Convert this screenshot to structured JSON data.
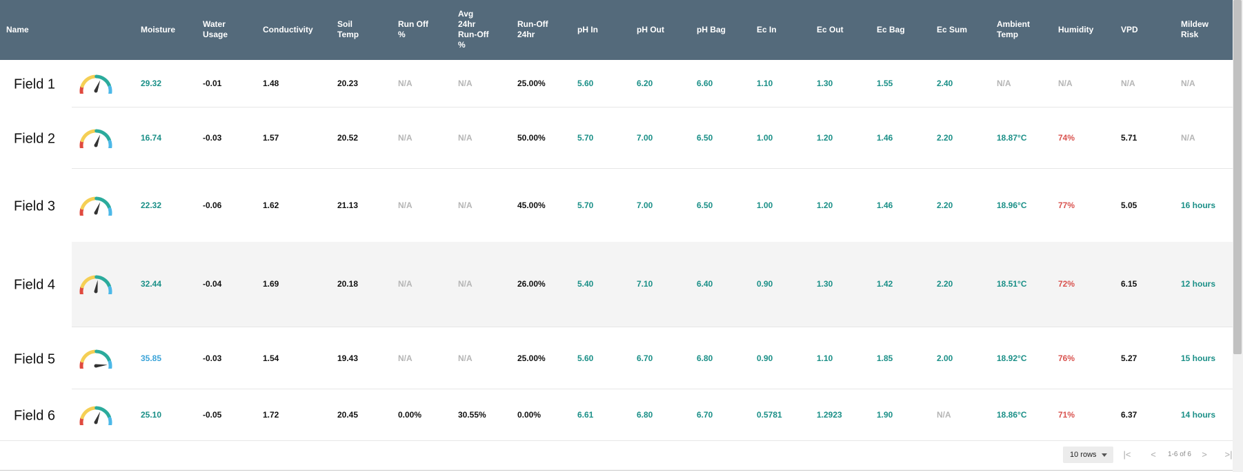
{
  "headers": {
    "name": "Name",
    "moisture": "Moisture",
    "water_usage": "Water\nUsage",
    "conductivity": "Conductivity",
    "soil_temp": "Soil\nTemp",
    "run_off_pct": "Run Off\n%",
    "avg_runoff": "Avg\n24hr\nRun-Off\n%",
    "runoff_24": "Run-Off\n24hr",
    "ph_in": "pH In",
    "ph_out": "pH Out",
    "ph_bag": "pH Bag",
    "ec_in": "Ec In",
    "ec_out": "Ec Out",
    "ec_bag": "Ec Bag",
    "ec_sum": "Ec Sum",
    "ambient_temp": "Ambient\nTemp",
    "humidity": "Humidity",
    "vpd": "VPD",
    "mildew_risk": "Mildew\nRisk"
  },
  "colors": {
    "header_bg": "#546a7b",
    "teal": "#1a8f87",
    "blue": "#3aa3d8",
    "red": "#d9534f",
    "gray": "#b5b5b5",
    "gauge_red": "#e04a3f",
    "gauge_yellow": "#f5cf55",
    "gauge_teal": "#2bab9c",
    "gauge_blue": "#4cb8e8"
  },
  "rows": [
    {
      "name": "Field 1",
      "gauge_level": 0.62,
      "moisture": {
        "v": "29.32",
        "c": "teal"
      },
      "water_usage": {
        "v": "-0.01",
        "c": "dark"
      },
      "conductivity": {
        "v": "1.48",
        "c": "dark"
      },
      "soil_temp": {
        "v": "20.23",
        "c": "dark"
      },
      "run_off_pct": {
        "v": "N/A",
        "c": "gray"
      },
      "avg_runoff": {
        "v": "N/A",
        "c": "gray"
      },
      "runoff_24": {
        "v": "25.00%",
        "c": "dark"
      },
      "ph_in": {
        "v": "5.60",
        "c": "teal"
      },
      "ph_out": {
        "v": "6.20",
        "c": "teal"
      },
      "ph_bag": {
        "v": "6.60",
        "c": "teal"
      },
      "ec_in": {
        "v": "1.10",
        "c": "teal"
      },
      "ec_out": {
        "v": "1.30",
        "c": "teal"
      },
      "ec_bag": {
        "v": "1.55",
        "c": "teal"
      },
      "ec_sum": {
        "v": "2.40",
        "c": "teal"
      },
      "ambient_temp": {
        "v": "N/A",
        "c": "gray"
      },
      "humidity": {
        "v": "N/A",
        "c": "gray"
      },
      "vpd": {
        "v": "N/A",
        "c": "gray"
      },
      "mildew_risk": {
        "v": "N/A",
        "c": "gray"
      }
    },
    {
      "name": "Field 2",
      "gauge_level": 0.62,
      "moisture": {
        "v": "16.74",
        "c": "teal"
      },
      "water_usage": {
        "v": "-0.03",
        "c": "dark"
      },
      "conductivity": {
        "v": "1.57",
        "c": "dark"
      },
      "soil_temp": {
        "v": "20.52",
        "c": "dark"
      },
      "run_off_pct": {
        "v": "N/A",
        "c": "gray"
      },
      "avg_runoff": {
        "v": "N/A",
        "c": "gray"
      },
      "runoff_24": {
        "v": "50.00%",
        "c": "dark"
      },
      "ph_in": {
        "v": "5.70",
        "c": "teal"
      },
      "ph_out": {
        "v": "7.00",
        "c": "teal"
      },
      "ph_bag": {
        "v": "6.50",
        "c": "teal"
      },
      "ec_in": {
        "v": "1.00",
        "c": "teal"
      },
      "ec_out": {
        "v": "1.20",
        "c": "teal"
      },
      "ec_bag": {
        "v": "1.46",
        "c": "teal"
      },
      "ec_sum": {
        "v": "2.20",
        "c": "teal"
      },
      "ambient_temp": {
        "v": "18.87°C",
        "c": "teal"
      },
      "humidity": {
        "v": "74%",
        "c": "red"
      },
      "vpd": {
        "v": "5.71",
        "c": "dark"
      },
      "mildew_risk": {
        "v": "N/A",
        "c": "gray"
      }
    },
    {
      "name": "Field 3",
      "gauge_level": 0.62,
      "moisture": {
        "v": "22.32",
        "c": "teal"
      },
      "water_usage": {
        "v": "-0.06",
        "c": "dark"
      },
      "conductivity": {
        "v": "1.62",
        "c": "dark"
      },
      "soil_temp": {
        "v": "21.13",
        "c": "dark"
      },
      "run_off_pct": {
        "v": "N/A",
        "c": "gray"
      },
      "avg_runoff": {
        "v": "N/A",
        "c": "gray"
      },
      "runoff_24": {
        "v": "45.00%",
        "c": "dark"
      },
      "ph_in": {
        "v": "5.70",
        "c": "teal"
      },
      "ph_out": {
        "v": "7.00",
        "c": "teal"
      },
      "ph_bag": {
        "v": "6.50",
        "c": "teal"
      },
      "ec_in": {
        "v": "1.00",
        "c": "teal"
      },
      "ec_out": {
        "v": "1.20",
        "c": "teal"
      },
      "ec_bag": {
        "v": "1.46",
        "c": "teal"
      },
      "ec_sum": {
        "v": "2.20",
        "c": "teal"
      },
      "ambient_temp": {
        "v": "18.96°C",
        "c": "teal"
      },
      "humidity": {
        "v": "77%",
        "c": "red"
      },
      "vpd": {
        "v": "5.05",
        "c": "dark"
      },
      "mildew_risk": {
        "v": "16 hours",
        "c": "teal"
      }
    },
    {
      "name": "Field 4",
      "gauge_level": 0.55,
      "moisture": {
        "v": "32.44",
        "c": "teal"
      },
      "water_usage": {
        "v": "-0.04",
        "c": "dark"
      },
      "conductivity": {
        "v": "1.69",
        "c": "dark"
      },
      "soil_temp": {
        "v": "20.18",
        "c": "dark"
      },
      "run_off_pct": {
        "v": "N/A",
        "c": "gray"
      },
      "avg_runoff": {
        "v": "N/A",
        "c": "gray"
      },
      "runoff_24": {
        "v": "26.00%",
        "c": "dark"
      },
      "ph_in": {
        "v": "5.40",
        "c": "teal"
      },
      "ph_out": {
        "v": "7.10",
        "c": "teal"
      },
      "ph_bag": {
        "v": "6.40",
        "c": "teal"
      },
      "ec_in": {
        "v": "0.90",
        "c": "teal"
      },
      "ec_out": {
        "v": "1.30",
        "c": "teal"
      },
      "ec_bag": {
        "v": "1.42",
        "c": "teal"
      },
      "ec_sum": {
        "v": "2.20",
        "c": "teal"
      },
      "ambient_temp": {
        "v": "18.51°C",
        "c": "teal"
      },
      "humidity": {
        "v": "72%",
        "c": "red"
      },
      "vpd": {
        "v": "6.15",
        "c": "dark"
      },
      "mildew_risk": {
        "v": "12 hours",
        "c": "teal"
      }
    },
    {
      "name": "Field 5",
      "gauge_level": 0.97,
      "moisture": {
        "v": "35.85",
        "c": "blue"
      },
      "water_usage": {
        "v": "-0.03",
        "c": "dark"
      },
      "conductivity": {
        "v": "1.54",
        "c": "dark"
      },
      "soil_temp": {
        "v": "19.43",
        "c": "dark"
      },
      "run_off_pct": {
        "v": "N/A",
        "c": "gray"
      },
      "avg_runoff": {
        "v": "N/A",
        "c": "gray"
      },
      "runoff_24": {
        "v": "25.00%",
        "c": "dark"
      },
      "ph_in": {
        "v": "5.60",
        "c": "teal"
      },
      "ph_out": {
        "v": "6.70",
        "c": "teal"
      },
      "ph_bag": {
        "v": "6.80",
        "c": "teal"
      },
      "ec_in": {
        "v": "0.90",
        "c": "teal"
      },
      "ec_out": {
        "v": "1.10",
        "c": "teal"
      },
      "ec_bag": {
        "v": "1.85",
        "c": "teal"
      },
      "ec_sum": {
        "v": "2.00",
        "c": "teal"
      },
      "ambient_temp": {
        "v": "18.92°C",
        "c": "teal"
      },
      "humidity": {
        "v": "76%",
        "c": "red"
      },
      "vpd": {
        "v": "5.27",
        "c": "dark"
      },
      "mildew_risk": {
        "v": "15 hours",
        "c": "teal"
      }
    },
    {
      "name": "Field 6",
      "gauge_level": 0.62,
      "moisture": {
        "v": "25.10",
        "c": "teal"
      },
      "water_usage": {
        "v": "-0.05",
        "c": "dark"
      },
      "conductivity": {
        "v": "1.72",
        "c": "dark"
      },
      "soil_temp": {
        "v": "20.45",
        "c": "dark"
      },
      "run_off_pct": {
        "v": "0.00%",
        "c": "dark"
      },
      "avg_runoff": {
        "v": "30.55%",
        "c": "dark"
      },
      "runoff_24": {
        "v": "0.00%",
        "c": "dark"
      },
      "ph_in": {
        "v": "6.61",
        "c": "teal"
      },
      "ph_out": {
        "v": "6.80",
        "c": "teal"
      },
      "ph_bag": {
        "v": "6.70",
        "c": "teal"
      },
      "ec_in": {
        "v": "0.5781",
        "c": "teal"
      },
      "ec_out": {
        "v": "1.2923",
        "c": "teal"
      },
      "ec_bag": {
        "v": "1.90",
        "c": "teal"
      },
      "ec_sum": {
        "v": "N/A",
        "c": "gray"
      },
      "ambient_temp": {
        "v": "18.86°C",
        "c": "teal"
      },
      "humidity": {
        "v": "71%",
        "c": "red"
      },
      "vpd": {
        "v": "6.37",
        "c": "dark"
      },
      "mildew_risk": {
        "v": "14 hours",
        "c": "teal"
      }
    }
  ],
  "pagination": {
    "rows_per_page": "10 rows",
    "range": "1-6 of 6",
    "first_icon": "first-page-icon",
    "prev_icon": "chevron-left-icon",
    "next_icon": "chevron-right-icon",
    "last_icon": "last-page-icon"
  }
}
